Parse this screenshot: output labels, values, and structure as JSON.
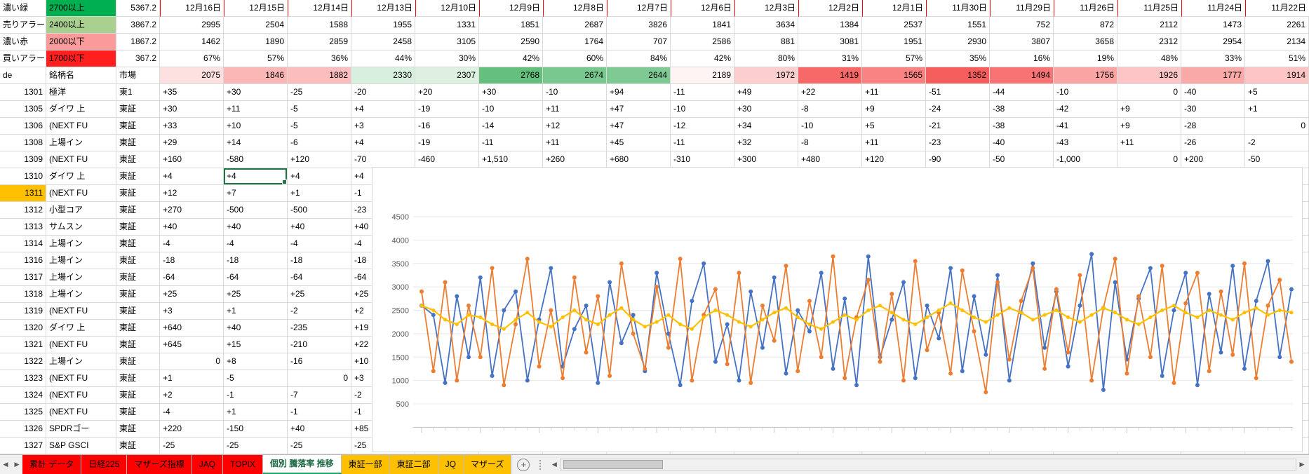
{
  "colors": {
    "grid_line": "#D9D9D9",
    "date_separator": "#FF0000",
    "selection": "#217346",
    "row_highlight": "#FFC000",
    "tab_red": "#FF0000",
    "tab_yellow": "#FFC000",
    "active_tab_accent": "#21A366"
  },
  "legend": [
    {
      "label": "濃い緑",
      "range": "2700以上",
      "range_bg": "#00B050",
      "value": "5367.2"
    },
    {
      "label": "売りアラー",
      "range": "2400以上",
      "range_bg": "#A9D08E",
      "value": "3867.2"
    },
    {
      "label": "濃い赤",
      "range": "2000以下",
      "range_bg": "#FB9A9A",
      "value": "1867.2"
    },
    {
      "label": "買いアラー",
      "range": "1700以下",
      "range_bg": "#FF1F1F",
      "value": "367.2"
    }
  ],
  "columns_header": {
    "a": "de",
    "b": "銘柄名",
    "c": "市場"
  },
  "dates": [
    "12月16日",
    "12月15日",
    "12月14日",
    "12月13日",
    "12月10日",
    "12月9日",
    "12月8日",
    "12月7日",
    "12月6日",
    "12月3日",
    "12月2日",
    "12月1日",
    "11月30日",
    "11月29日",
    "11月26日",
    "11月25日",
    "11月24日",
    "11月22日"
  ],
  "summary": {
    "daily_a": [
      "2995",
      "2504",
      "1588",
      "1955",
      "1331",
      "1851",
      "2687",
      "3826",
      "1841",
      "3634",
      "1384",
      "2537",
      "1551",
      "752",
      "872",
      "2112",
      "1473",
      "2261"
    ],
    "daily_b": [
      "1462",
      "1890",
      "2859",
      "2458",
      "3105",
      "2590",
      "1764",
      "707",
      "2586",
      "881",
      "3081",
      "1951",
      "2930",
      "3807",
      "3658",
      "2312",
      "2954",
      "2134"
    ],
    "percents": [
      "67%",
      "57%",
      "36%",
      "44%",
      "30%",
      "42%",
      "60%",
      "84%",
      "42%",
      "80%",
      "31%",
      "57%",
      "35%",
      "16%",
      "19%",
      "48%",
      "33%",
      "51%"
    ],
    "index_row": [
      {
        "v": "2075",
        "bg": "#FDE1E1"
      },
      {
        "v": "1846",
        "bg": "#FBB6B6"
      },
      {
        "v": "1882",
        "bg": "#FBBDBD"
      },
      {
        "v": "2330",
        "bg": "#D8EEDE"
      },
      {
        "v": "2307",
        "bg": "#DDF0E2"
      },
      {
        "v": "2768",
        "bg": "#65C07E"
      },
      {
        "v": "2674",
        "bg": "#79C88F"
      },
      {
        "v": "2644",
        "bg": "#7FCA94"
      },
      {
        "v": "2189",
        "bg": "#FEF4F4"
      },
      {
        "v": "1972",
        "bg": "#FCCFCF"
      },
      {
        "v": "1419",
        "bg": "#F76868"
      },
      {
        "v": "1565",
        "bg": "#F98383"
      },
      {
        "v": "1352",
        "bg": "#F65E5E"
      },
      {
        "v": "1494",
        "bg": "#F87474"
      },
      {
        "v": "1756",
        "bg": "#FAA4A4"
      },
      {
        "v": "1926",
        "bg": "#FCC6C6"
      },
      {
        "v": "1777",
        "bg": "#FAA9A9"
      },
      {
        "v": "1914",
        "bg": "#FCC4C4"
      }
    ]
  },
  "stocks": [
    {
      "code": "1301",
      "name": "極洋",
      "market": "東1",
      "values": [
        "+35",
        "+30",
        "-25",
        "-20",
        "+20",
        "+30",
        "-10",
        "+94",
        "-11",
        "+49",
        "+22",
        "+11",
        "-51",
        "-44",
        "-10",
        "0",
        "-40",
        "+5"
      ]
    },
    {
      "code": "1305",
      "name": "ダイワ 上",
      "market": "東証",
      "values": [
        "+30",
        "+11",
        "-5",
        "+4",
        "-19",
        "-10",
        "+11",
        "+47",
        "-10",
        "+30",
        "-8",
        "+9",
        "-24",
        "-38",
        "-42",
        "+9",
        "-30",
        "+1"
      ]
    },
    {
      "code": "1306",
      "name": "(NEXT FU",
      "market": "東証",
      "values": [
        "+33",
        "+10",
        "-5",
        "+3",
        "-16",
        "-14",
        "+12",
        "+47",
        "-12",
        "+34",
        "-10",
        "+5",
        "-21",
        "-38",
        "-41",
        "+9",
        "-28",
        "0"
      ]
    },
    {
      "code": "1308",
      "name": "上場イン",
      "market": "東証",
      "values": [
        "+29",
        "+14",
        "-6",
        "+4",
        "-19",
        "-11",
        "+11",
        "+45",
        "-11",
        "+32",
        "-8",
        "+11",
        "-23",
        "-40",
        "-43",
        "+11",
        "-26",
        "-2"
      ]
    },
    {
      "code": "1309",
      "name": "(NEXT FU",
      "market": "東証",
      "values": [
        "+160",
        "-580",
        "+120",
        "-70",
        "-460",
        "+1,510",
        "+260",
        "+680",
        "-310",
        "+300",
        "+480",
        "+120",
        "-90",
        "-50",
        "-1,000",
        "0",
        "+200",
        "-50"
      ]
    },
    {
      "code": "1310",
      "name": "ダイワ 上",
      "market": "東証",
      "values": [
        "+4",
        "+4",
        "+4",
        "+4"
      ]
    },
    {
      "code": "1311",
      "name": "(NEXT FU",
      "market": "東証",
      "values": [
        "+12",
        "+7",
        "+1",
        "-1"
      ],
      "highlight": true
    },
    {
      "code": "1312",
      "name": "小型コア",
      "market": "東証",
      "values": [
        "+270",
        "-500",
        "-500",
        "-23"
      ]
    },
    {
      "code": "1313",
      "name": "サムスン",
      "market": "東証",
      "values": [
        "+40",
        "+40",
        "+40",
        "+40"
      ]
    },
    {
      "code": "1314",
      "name": "上場イン",
      "market": "東証",
      "values": [
        "-4",
        "-4",
        "-4",
        "-4"
      ]
    },
    {
      "code": "1316",
      "name": "上場イン",
      "market": "東証",
      "values": [
        "-18",
        "-18",
        "-18",
        "-18"
      ]
    },
    {
      "code": "1317",
      "name": "上場イン",
      "market": "東証",
      "values": [
        "-64",
        "-64",
        "-64",
        "-64"
      ]
    },
    {
      "code": "1318",
      "name": "上場イン",
      "market": "東証",
      "values": [
        "+25",
        "+25",
        "+25",
        "+25"
      ]
    },
    {
      "code": "1319",
      "name": "(NEXT FU",
      "market": "東証",
      "values": [
        "+3",
        "+1",
        "-2",
        "+2"
      ]
    },
    {
      "code": "1320",
      "name": "ダイワ 上",
      "market": "東証",
      "values": [
        "+640",
        "+40",
        "-235",
        "+19"
      ]
    },
    {
      "code": "1321",
      "name": "(NEXT FU",
      "market": "東証",
      "values": [
        "+645",
        "+15",
        "-210",
        "+22"
      ]
    },
    {
      "code": "1322",
      "name": "上場イン",
      "market": "東証",
      "values": [
        "0",
        "+8",
        "-16",
        "+10"
      ]
    },
    {
      "code": "1323",
      "name": "(NEXT FU",
      "market": "東証",
      "values": [
        "+1",
        "-5",
        "0",
        "+3"
      ]
    },
    {
      "code": "1324",
      "name": "(NEXT FU",
      "market": "東証",
      "values": [
        "+2",
        "-1",
        "-7",
        "-2"
      ]
    },
    {
      "code": "1325",
      "name": "(NEXT FU",
      "market": "東証",
      "values": [
        "-4",
        "+1",
        "-1",
        "-1"
      ]
    },
    {
      "code": "1326",
      "name": "SPDRゴー",
      "market": "東証",
      "values": [
        "+220",
        "-150",
        "+40",
        "+85"
      ]
    },
    {
      "code": "1327",
      "name": "S&P GSCI",
      "market": "東証",
      "values": [
        "-25",
        "-25",
        "-25",
        "-25"
      ]
    }
  ],
  "selection": {
    "code": "1310",
    "col": 1
  },
  "chart_data": {
    "type": "line",
    "title": "",
    "xlabel": "",
    "ylabel": "",
    "ylim": [
      0,
      4500
    ],
    "y_ticks": [
      500,
      1000,
      1500,
      2000,
      2500,
      3000,
      3500,
      4000,
      4500
    ],
    "grid": true,
    "legend_position": "none",
    "series": [
      {
        "name": "series-blue",
        "color": "#4472C4",
        "values": [
          2600,
          2400,
          950,
          2800,
          1500,
          3200,
          1100,
          2500,
          2900,
          1000,
          2300,
          3400,
          1300,
          2100,
          2600,
          950,
          3100,
          1800,
          2400,
          1200,
          3300,
          2000,
          900,
          2700,
          3500,
          1400,
          2200,
          1000,
          2900,
          1700,
          3200,
          1150,
          2500,
          2050,
          3300,
          1250,
          2750,
          900,
          3650,
          1500,
          2300,
          3100,
          1050,
          2600,
          1900,
          3400,
          1200,
          2800,
          1550,
          3250,
          1000,
          2450,
          3500,
          1700,
          2900,
          1300,
          2600,
          3700,
          800,
          3100,
          1450,
          2750,
          3400,
          1100,
          2500,
          3300,
          900,
          2850,
          1600,
          3450,
          1250,
          2700,
          3550,
          1500,
          2950
        ]
      },
      {
        "name": "series-orange",
        "color": "#ED7D31",
        "values": [
          2900,
          1200,
          3100,
          1000,
          2600,
          1500,
          3400,
          900,
          2200,
          3600,
          1300,
          2500,
          1050,
          3200,
          1600,
          2800,
          1100,
          3500,
          2000,
          1250,
          3000,
          1700,
          3600,
          1000,
          2400,
          2950,
          1350,
          3300,
          950,
          2600,
          1850,
          3450,
          1200,
          2700,
          1500,
          3650,
          1050,
          2350,
          3150,
          1400,
          2850,
          1000,
          3550,
          1650,
          2450,
          1150,
          3350,
          2050,
          750,
          3100,
          1450,
          2700,
          3400,
          1250,
          2950,
          1600,
          3250,
          1000,
          2550,
          3600,
          1150,
          2800,
          1500,
          3450,
          950,
          2650,
          3300,
          1200,
          2900,
          1550,
          3500,
          1050,
          2600,
          3150,
          1400
        ]
      },
      {
        "name": "series-yellow",
        "color": "#FFC000",
        "values": [
          2600,
          2500,
          2300,
          2200,
          2400,
          2350,
          2200,
          2100,
          2300,
          2450,
          2250,
          2150,
          2350,
          2500,
          2300,
          2200,
          2400,
          2550,
          2300,
          2150,
          2250,
          2400,
          2200,
          2100,
          2350,
          2500,
          2400,
          2250,
          2150,
          2300,
          2450,
          2550,
          2350,
          2200,
          2100,
          2250,
          2400,
          2300,
          2500,
          2600,
          2450,
          2300,
          2200,
          2350,
          2500,
          2650,
          2500,
          2350,
          2250,
          2400,
          2550,
          2450,
          2300,
          2400,
          2500,
          2350,
          2250,
          2400,
          2550,
          2450,
          2300,
          2200,
          2350,
          2500,
          2600,
          2450,
          2350,
          2500,
          2400,
          2300,
          2450,
          2550,
          2400,
          2500,
          2450
        ]
      }
    ]
  },
  "tabs": [
    {
      "label": "累計 データ",
      "bg": "#FF0000",
      "fg": "#000000",
      "active": false
    },
    {
      "label": "日経225",
      "bg": "#FF0000",
      "fg": "#000000",
      "active": false
    },
    {
      "label": "マザーズ指標",
      "bg": "#FF0000",
      "fg": "#000000",
      "active": false
    },
    {
      "label": "JAQ",
      "bg": "#FF0000",
      "fg": "#000000",
      "active": false
    },
    {
      "label": "TOPIX",
      "bg": "#FF0000",
      "fg": "#000000",
      "active": false
    },
    {
      "label": "個別 騰落率 推移",
      "bg": "#FFFFFF",
      "fg": "#1E6B44",
      "active": true
    },
    {
      "label": "東証一部",
      "bg": "#FFC000",
      "fg": "#000000",
      "active": false
    },
    {
      "label": "東証二部",
      "bg": "#FFC000",
      "fg": "#000000",
      "active": false
    },
    {
      "label": "JQ",
      "bg": "#FFC000",
      "fg": "#000000",
      "active": false
    },
    {
      "label": "マザーズ",
      "bg": "#FFC000",
      "fg": "#000000",
      "active": false
    }
  ],
  "tabbar": {
    "prev": "◀",
    "next": "▶",
    "add": "+",
    "scroll_left": "◀",
    "scroll_right": "▶"
  }
}
